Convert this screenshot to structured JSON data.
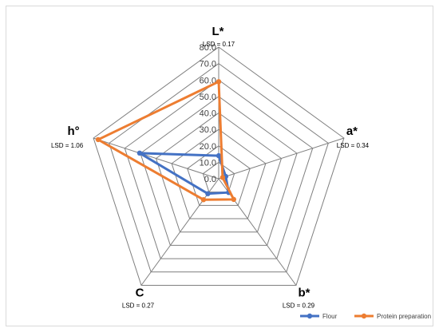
{
  "chart_data": {
    "type": "radar",
    "title": "",
    "axes": [
      {
        "label": "L*",
        "lsd": "LSD = 0.17"
      },
      {
        "label": "a*",
        "lsd": "LSD = 0.34"
      },
      {
        "label": "b*",
        "lsd": "LSD = 0.29"
      },
      {
        "label": "C",
        "lsd": "LSD = 0.27"
      },
      {
        "label": "h°",
        "lsd": "LSD = 1.06"
      }
    ],
    "rlim": [
      0,
      80
    ],
    "ticks": [
      "0.0",
      "10.0",
      "20.0",
      "30.0",
      "40.0",
      "50.0",
      "60.0",
      "70.0",
      "80.0"
    ],
    "series": [
      {
        "name": "Flour",
        "color": "#4472c4",
        "values": [
          14.0,
          4.5,
          10.3,
          11.2,
          50.5
        ]
      },
      {
        "name": "Protein preparation",
        "color": "#ed7d31",
        "values": [
          59.0,
          2.5,
          15.5,
          15.7,
          77.0
        ]
      }
    ],
    "legend_position": "bottom-right",
    "grid": true
  }
}
